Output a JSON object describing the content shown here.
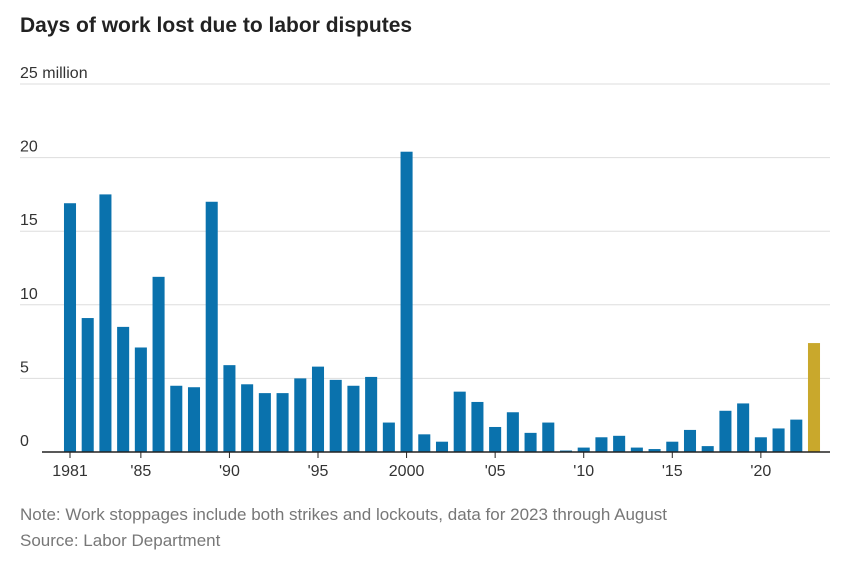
{
  "chart_data": {
    "type": "bar",
    "title": "Days of work lost due to labor disputes",
    "y_unit_label": "25 million",
    "ylim": [
      0,
      25
    ],
    "yticks": [
      0,
      5,
      10,
      15,
      20,
      25
    ],
    "ytick_labels": [
      "0",
      "5",
      "10",
      "15",
      "20",
      "25 million"
    ],
    "grid": true,
    "x": [
      1981,
      1982,
      1983,
      1984,
      1985,
      1986,
      1987,
      1988,
      1989,
      1990,
      1991,
      1992,
      1993,
      1994,
      1995,
      1996,
      1997,
      1998,
      1999,
      2000,
      2001,
      2002,
      2003,
      2004,
      2005,
      2006,
      2007,
      2008,
      2009,
      2010,
      2011,
      2012,
      2013,
      2014,
      2015,
      2016,
      2017,
      2018,
      2019,
      2020,
      2021,
      2022,
      2023
    ],
    "values": [
      16.9,
      9.1,
      17.5,
      8.5,
      7.1,
      11.9,
      4.5,
      4.4,
      17.0,
      5.9,
      4.6,
      4.0,
      4.0,
      5.0,
      5.8,
      4.9,
      4.5,
      5.1,
      2.0,
      20.4,
      1.2,
      0.7,
      4.1,
      3.4,
      1.7,
      2.7,
      1.3,
      2.0,
      0.1,
      0.3,
      1.0,
      1.1,
      0.3,
      0.2,
      0.7,
      1.5,
      0.4,
      2.8,
      3.3,
      1.0,
      1.6,
      2.2,
      7.4
    ],
    "xtick_labels": [
      {
        "x": 1981,
        "label": "1981"
      },
      {
        "x": 1985,
        "label": "'85"
      },
      {
        "x": 1990,
        "label": "'90"
      },
      {
        "x": 1995,
        "label": "'95"
      },
      {
        "x": 2000,
        "label": "2000"
      },
      {
        "x": 2005,
        "label": "'05"
      },
      {
        "x": 2010,
        "label": "'10"
      },
      {
        "x": 2015,
        "label": "'15"
      },
      {
        "x": 2020,
        "label": "'20"
      }
    ],
    "colors": {
      "bar": "#0a72ad",
      "highlight": "#c9a82c",
      "grid": "#dddddd",
      "axis": "#222222"
    },
    "highlight_x": 2023
  },
  "note": "Note: Work stoppages include both strikes and lockouts, data for 2023 through August",
  "source": "Source: Labor Department"
}
